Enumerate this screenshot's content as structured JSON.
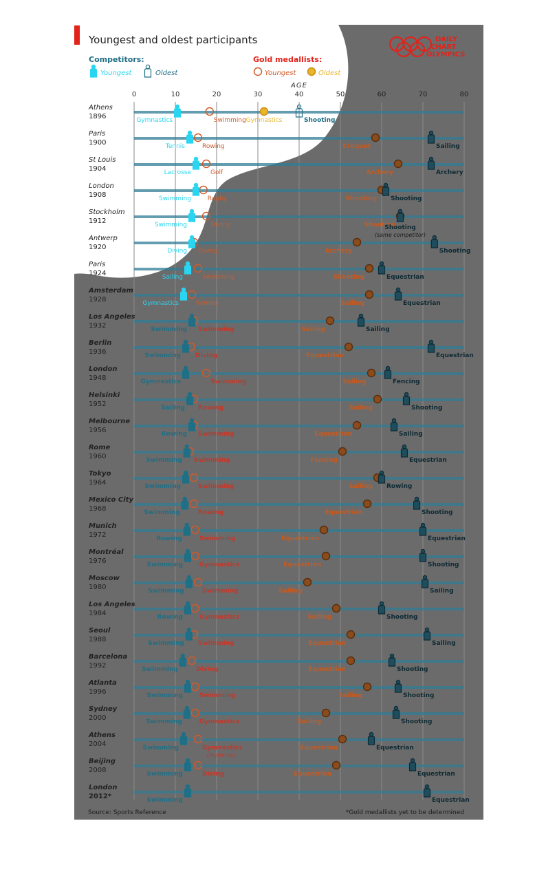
{
  "title": "Youngest and oldest participants",
  "brand": {
    "line1": "DAILY",
    "line2": "CHART",
    "line3": "OLYMPICS"
  },
  "legend": {
    "competitors_title": "Competitors:",
    "gold_title": "Gold medallists:",
    "youngest": "Youngest",
    "oldest": "Oldest"
  },
  "source": "Source: Sports Reference",
  "footnote": "*Gold medallists yet to be determined",
  "colors": {
    "youngest_comp": "#29d5f0",
    "oldest_comp": "#1f6f86",
    "gold_young": "#cf5a2a",
    "gold_old": "#e9b52a",
    "grey_bg": "#6b6b6b",
    "accent_red": "#e2231a"
  },
  "chart_data": {
    "type": "scatter",
    "xlabel": "AGE",
    "xlim": [
      0,
      80
    ],
    "xticks": [
      0,
      10,
      20,
      30,
      40,
      50,
      60,
      70,
      80
    ],
    "series": [
      {
        "name": "Competitors: Youngest",
        "key": "cy"
      },
      {
        "name": "Competitors: Oldest",
        "key": "co"
      },
      {
        "name": "Gold medallists: Youngest",
        "key": "gy"
      },
      {
        "name": "Gold medallists: Oldest",
        "key": "go"
      }
    ],
    "rows": [
      {
        "city": "Athens",
        "year": "1896",
        "cy": {
          "age": 10.5,
          "sport": "Gymnastics"
        },
        "gy": {
          "age": 18.3,
          "sport": "Swimming"
        },
        "go": {
          "age": 31.5,
          "sport": "Gymnastics"
        },
        "co": {
          "age": 40,
          "sport": "Shooting"
        }
      },
      {
        "city": "Paris",
        "year": "1900",
        "cy": {
          "age": 13.5,
          "sport": "Tennis"
        },
        "gy": {
          "age": 15.5,
          "sport": "Rowing"
        },
        "go": {
          "age": 58.5,
          "sport": "Croquet"
        },
        "co": {
          "age": 72,
          "sport": "Sailing"
        }
      },
      {
        "city": "St Louis",
        "year": "1904",
        "cy": {
          "age": 15,
          "sport": "Lacrosse"
        },
        "gy": {
          "age": 17.5,
          "sport": "Golf"
        },
        "go": {
          "age": 64,
          "sport": "Archery"
        },
        "co": {
          "age": 72,
          "sport": "Archery"
        }
      },
      {
        "city": "London",
        "year": "1908",
        "cy": {
          "age": 15,
          "sport": "Swimming"
        },
        "gy": {
          "age": 16.8,
          "sport": "Rugby"
        },
        "go": {
          "age": 60,
          "sport": "Shooting"
        },
        "co": {
          "age": 61,
          "sport": "Shooting"
        }
      },
      {
        "city": "Stockholm",
        "year": "1912",
        "cy": {
          "age": 14,
          "sport": "Swimming"
        },
        "gy": {
          "age": 17.5,
          "sport": "Diving"
        },
        "go": {
          "age": 64.5,
          "sport": "Shooting"
        },
        "co": {
          "age": 64.5,
          "sport": "Shooting"
        },
        "note": "(same competitor)"
      },
      {
        "city": "Antwerp",
        "year": "1920",
        "cy": {
          "age": 14,
          "sport": "Diving"
        },
        "gy": {
          "age": 14.5,
          "sport": "Diving"
        },
        "go": {
          "age": 54,
          "sport": "Archery"
        },
        "co": {
          "age": 72.8,
          "sport": "Shooting"
        }
      },
      {
        "city": "Paris",
        "year": "1924",
        "cy": {
          "age": 13,
          "sport": "Sailing"
        },
        "gy": {
          "age": 15.5,
          "sport": "Swimming"
        },
        "go": {
          "age": 57,
          "sport": "Shooting"
        },
        "co": {
          "age": 60,
          "sport": "Equestrian"
        }
      },
      {
        "city": "Amsterdam",
        "year": "1928",
        "cy": {
          "age": 12,
          "sport": "Gymnastics"
        },
        "gy": {
          "age": 14,
          "sport": "Rowing"
        },
        "go": {
          "age": 57,
          "sport": "Sailing"
        },
        "co": {
          "age": 64,
          "sport": "Equestrian"
        }
      },
      {
        "city": "Los Angeles",
        "year": "1932",
        "cy": {
          "age": 14,
          "sport": "Swimming"
        },
        "gy": {
          "age": 14.5,
          "sport": "Swimming"
        },
        "go": {
          "age": 47.5,
          "sport": "Sailing"
        },
        "co": {
          "age": 55,
          "sport": "Sailing"
        }
      },
      {
        "city": "Berlin",
        "year": "1936",
        "cy": {
          "age": 12.5,
          "sport": "Swimming"
        },
        "gy": {
          "age": 13.8,
          "sport": "Diving"
        },
        "go": {
          "age": 52,
          "sport": "Equestrian"
        },
        "co": {
          "age": 72,
          "sport": "Equestrian"
        }
      },
      {
        "city": "London",
        "year": "1948",
        "cy": {
          "age": 12.5,
          "sport": "Gymnastics"
        },
        "gy": {
          "age": 17.5,
          "sport": "Swimming"
        },
        "go": {
          "age": 57.5,
          "sport": "Sailing"
        },
        "co": {
          "age": 61.5,
          "sport": "Fencing"
        }
      },
      {
        "city": "Helsinki",
        "year": "1952",
        "cy": {
          "age": 13.5,
          "sport": "Sailing"
        },
        "gy": {
          "age": 14.5,
          "sport": "Rowing"
        },
        "go": {
          "age": 59,
          "sport": "Sailing"
        },
        "co": {
          "age": 66,
          "sport": "Shooting"
        }
      },
      {
        "city": "Melbourne",
        "year": "1956",
        "cy": {
          "age": 14,
          "sport": "Rowing"
        },
        "gy": {
          "age": 14.5,
          "sport": "Swimming"
        },
        "go": {
          "age": 54,
          "sport": "Equestrian"
        },
        "co": {
          "age": 63,
          "sport": "Sailing"
        }
      },
      {
        "city": "Rome",
        "year": "1960",
        "cy": {
          "age": 12.8,
          "sport": "Swimming"
        },
        "gy": {
          "age": 13.5,
          "sport": "Swimming"
        },
        "go": {
          "age": 50.5,
          "sport": "Fencing"
        },
        "co": {
          "age": 65.5,
          "sport": "Equestrian"
        }
      },
      {
        "city": "Tokyo",
        "year": "1964",
        "cy": {
          "age": 12.5,
          "sport": "Swimming"
        },
        "gy": {
          "age": 14.5,
          "sport": "Swimming"
        },
        "go": {
          "age": 59,
          "sport": "Sailing"
        },
        "co": {
          "age": 60,
          "sport": "Rowing"
        }
      },
      {
        "city": "Mexico City",
        "year": "1968",
        "cy": {
          "age": 12.3,
          "sport": "Swimming"
        },
        "gy": {
          "age": 14.5,
          "sport": "Rowing"
        },
        "go": {
          "age": 56.5,
          "sport": "Equestrian"
        },
        "co": {
          "age": 68.5,
          "sport": "Shooting"
        }
      },
      {
        "city": "Munich",
        "year": "1972",
        "cy": {
          "age": 12.8,
          "sport": "Rowing"
        },
        "gy": {
          "age": 14.8,
          "sport": "Swimming"
        },
        "go": {
          "age": 46,
          "sport": "Equestrian"
        },
        "co": {
          "age": 70,
          "sport": "Equestrian"
        }
      },
      {
        "city": "Montréal",
        "year": "1976",
        "cy": {
          "age": 13,
          "sport": "Swimming"
        },
        "gy": {
          "age": 14.8,
          "sport": "Gymnastics"
        },
        "go": {
          "age": 46.5,
          "sport": "Equestrian"
        },
        "co": {
          "age": 70,
          "sport": "Shooting"
        }
      },
      {
        "city": "Moscow",
        "year": "1980",
        "cy": {
          "age": 13.3,
          "sport": "Swimming"
        },
        "gy": {
          "age": 15.5,
          "sport": "Swimming"
        },
        "go": {
          "age": 42,
          "sport": "Sailing"
        },
        "co": {
          "age": 70.5,
          "sport": "Sailing"
        }
      },
      {
        "city": "Los Angeles",
        "year": "1984",
        "cy": {
          "age": 13,
          "sport": "Rowing"
        },
        "gy": {
          "age": 14.8,
          "sport": "Gymnastics"
        },
        "go": {
          "age": 49,
          "sport": "Sailing"
        },
        "co": {
          "age": 60,
          "sport": "Shooting"
        }
      },
      {
        "city": "Seoul",
        "year": "1988",
        "cy": {
          "age": 13.3,
          "sport": "Swimming"
        },
        "gy": {
          "age": 14.5,
          "sport": "Swimming"
        },
        "go": {
          "age": 52.5,
          "sport": "Equestrian"
        },
        "co": {
          "age": 71,
          "sport": "Sailing"
        }
      },
      {
        "city": "Barcelona",
        "year": "1992",
        "cy": {
          "age": 11.8,
          "sport": "Swimming"
        },
        "gy": {
          "age": 14,
          "sport": "Diving"
        },
        "go": {
          "age": 52.5,
          "sport": "Equestrian"
        },
        "co": {
          "age": 62.5,
          "sport": "Shooting"
        }
      },
      {
        "city": "Atlanta",
        "year": "1996",
        "cy": {
          "age": 13,
          "sport": "Swimming"
        },
        "gy": {
          "age": 14.8,
          "sport": "Swimming"
        },
        "go": {
          "age": 56.5,
          "sport": "Sailing"
        },
        "co": {
          "age": 64,
          "sport": "Shooting"
        }
      },
      {
        "city": "Sydney",
        "year": "2000",
        "cy": {
          "age": 12.8,
          "sport": "Swimming"
        },
        "gy": {
          "age": 14.8,
          "sport": "Gymnastics"
        },
        "go": {
          "age": 46.5,
          "sport": "Sailing"
        },
        "co": {
          "age": 63.5,
          "sport": "Shooting"
        }
      },
      {
        "city": "Athens",
        "year": "2004",
        "cy": {
          "age": 12,
          "sport": "Swimming"
        },
        "gy": {
          "age": 15.5,
          "sport": "Gymnastics",
          "sub": "(rhythmic)"
        },
        "go": {
          "age": 50.5,
          "sport": "Equestrian"
        },
        "co": {
          "age": 57.5,
          "sport": "Equestrian"
        }
      },
      {
        "city": "Beijing",
        "year": "2008",
        "cy": {
          "age": 13,
          "sport": "Swimming"
        },
        "gy": {
          "age": 15.5,
          "sport": "Diving"
        },
        "go": {
          "age": 49,
          "sport": "Equestrian"
        },
        "co": {
          "age": 67.5,
          "sport": "Equestrian"
        }
      },
      {
        "city": "London",
        "year": "2012*",
        "cy": {
          "age": 13,
          "sport": "Swimming"
        },
        "co": {
          "age": 71,
          "sport": "Equestrian"
        }
      }
    ]
  }
}
